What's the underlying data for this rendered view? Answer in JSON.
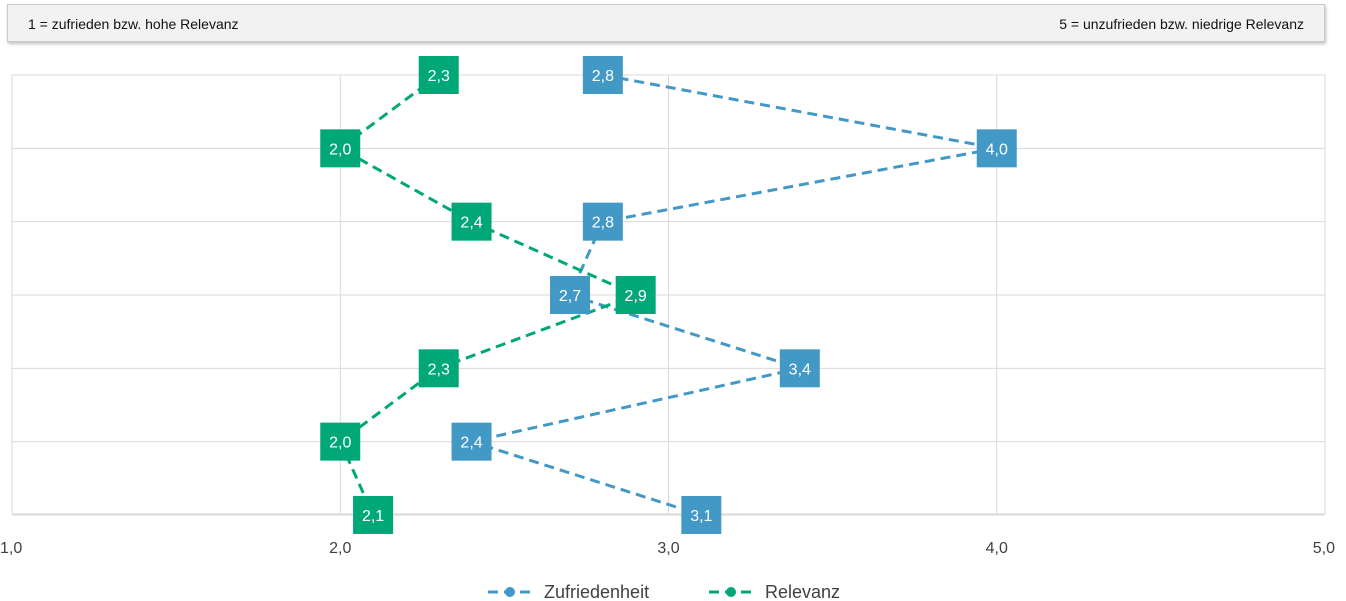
{
  "scale_note": {
    "left": "1 = zufrieden bzw. hohe Relevanz",
    "right": "5 = unzufrieden bzw. niedrige Relevanz"
  },
  "colors": {
    "zufriedenheit": "#4399c5",
    "relevanz": "#00a878",
    "grid": "#d9d9d9",
    "tick_text": "#404040"
  },
  "chart_data": {
    "type": "line",
    "orientation": "horizontal-value-axis",
    "xlim": [
      1,
      5
    ],
    "x_ticks": [
      1,
      2,
      3,
      4,
      5
    ],
    "x_tick_labels": [
      "1,0",
      "2,0",
      "3,0",
      "4,0",
      "5,0"
    ],
    "grid": true,
    "legend_position": "bottom",
    "line_style": "dashed",
    "rows": 7,
    "series": [
      {
        "name": "Zufriedenheit",
        "values": [
          2.8,
          4.0,
          2.8,
          2.7,
          3.4,
          2.4,
          3.1
        ],
        "labels": [
          "2,8",
          "4,0",
          "2,8",
          "2,7",
          "3,4",
          "2,4",
          "3,1"
        ]
      },
      {
        "name": "Relevanz",
        "values": [
          2.3,
          2.0,
          2.4,
          2.9,
          2.3,
          2.0,
          2.1
        ],
        "labels": [
          "2,3",
          "2,0",
          "2,4",
          "2,9",
          "2,3",
          "2,0",
          "2,1"
        ]
      }
    ]
  }
}
